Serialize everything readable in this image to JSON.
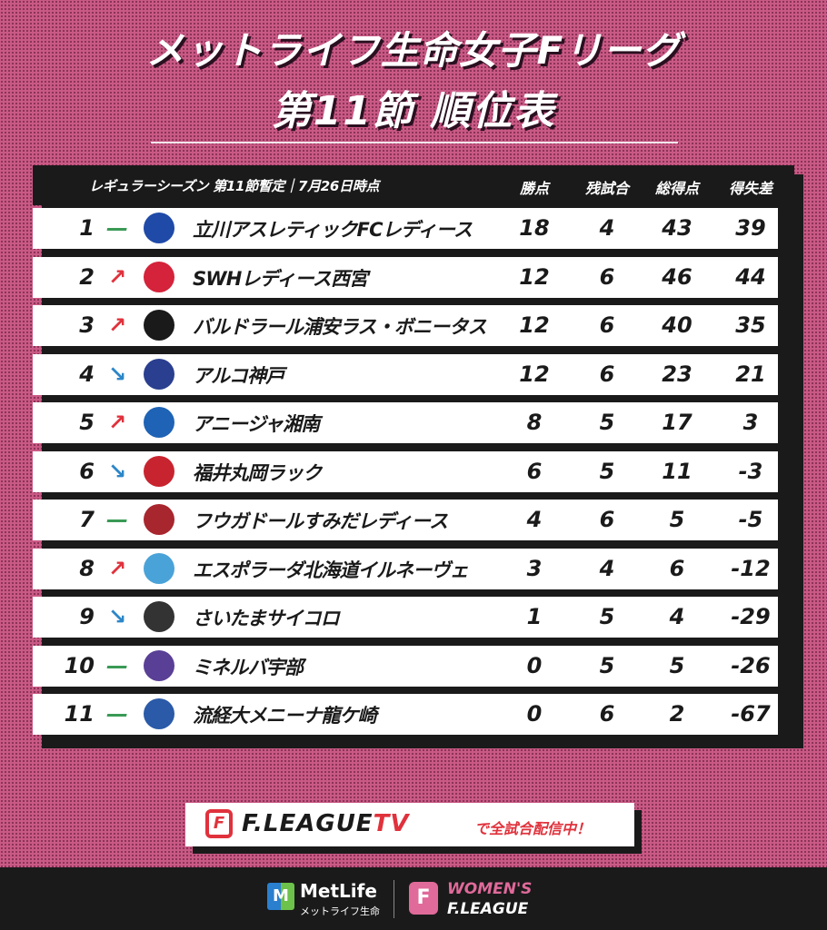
{
  "title_line1": "メットライフ生命女子Fリーグ",
  "title_line2": "第11節 順位表",
  "table": {
    "caption": "レギュラーシーズン 第11節暫定｜7月26日時点",
    "columns": [
      "勝点",
      "残試合",
      "総得点",
      "得失差"
    ],
    "rows": [
      {
        "rank": "1",
        "move": "—",
        "dir": "same",
        "team": "立川アスレティックFCレディース",
        "pts": "18",
        "rem": "4",
        "gf": "43",
        "gd": "39",
        "logo_icon": "tachikawa-crest-icon",
        "logo_color": "#1f4aa8"
      },
      {
        "rank": "2",
        "move": "↗",
        "dir": "up",
        "team": "SWHレディース西宮",
        "pts": "12",
        "rem": "6",
        "gf": "46",
        "gd": "44",
        "logo_icon": "swh-crest-icon",
        "logo_color": "#d4233a"
      },
      {
        "rank": "3",
        "move": "↗",
        "dir": "up",
        "team": "バルドラール浦安ラス・ボニータス",
        "pts": "12",
        "rem": "6",
        "gf": "40",
        "gd": "35",
        "logo_icon": "bardral-crest-icon",
        "logo_color": "#1a1a1a"
      },
      {
        "rank": "4",
        "move": "↘",
        "dir": "down",
        "team": "アルコ神戸",
        "pts": "12",
        "rem": "6",
        "gf": "23",
        "gd": "21",
        "logo_icon": "arco-crest-icon",
        "logo_color": "#2a3f8f"
      },
      {
        "rank": "5",
        "move": "↗",
        "dir": "up",
        "team": "アニージャ湘南",
        "pts": "8",
        "rem": "5",
        "gf": "17",
        "gd": "3",
        "logo_icon": "anilla-crest-icon",
        "logo_color": "#1e63b5"
      },
      {
        "rank": "6",
        "move": "↘",
        "dir": "down",
        "team": "福井丸岡ラック",
        "pts": "6",
        "rem": "5",
        "gf": "11",
        "gd": "-3",
        "logo_icon": "ruck-crest-icon",
        "logo_color": "#c8242f"
      },
      {
        "rank": "7",
        "move": "—",
        "dir": "same",
        "team": "フウガドールすみだレディース",
        "pts": "4",
        "rem": "6",
        "gf": "5",
        "gd": "-5",
        "logo_icon": "fugador-crest-icon",
        "logo_color": "#a8262e"
      },
      {
        "rank": "8",
        "move": "↗",
        "dir": "up",
        "team": "エスポラーダ北海道イルネーヴェ",
        "pts": "3",
        "rem": "4",
        "gf": "6",
        "gd": "-12",
        "logo_icon": "esporada-crest-icon",
        "logo_color": "#4aa3d8"
      },
      {
        "rank": "9",
        "move": "↘",
        "dir": "down",
        "team": "さいたまサイコロ",
        "pts": "1",
        "rem": "5",
        "gf": "4",
        "gd": "-29",
        "logo_icon": "saicolo-crest-icon",
        "logo_color": "#333333"
      },
      {
        "rank": "10",
        "move": "—",
        "dir": "same",
        "team": "ミネルバ宇部",
        "pts": "0",
        "rem": "5",
        "gf": "5",
        "gd": "-26",
        "logo_icon": "minerva-crest-icon",
        "logo_color": "#5a3f96"
      },
      {
        "rank": "11",
        "move": "—",
        "dir": "same",
        "team": "流経大メニーナ龍ケ崎",
        "pts": "0",
        "rem": "6",
        "gf": "2",
        "gd": "-67",
        "logo_icon": "rku-crest-icon",
        "logo_color": "#2a5aa8"
      }
    ]
  },
  "banner": {
    "logo_glyph": "F",
    "brand_main": "F.LEAGUE",
    "brand_tv": "TV",
    "tagline": "で全試合配信中！"
  },
  "footer": {
    "metlife_glyph": "M",
    "metlife_name": "MetLife",
    "metlife_sub": "メットライフ生命",
    "wfl_glyph": "F",
    "wfl_line1": "WOMEN'S",
    "wfl_line2": "F.LEAGUE"
  },
  "colors": {
    "background": "#c95985",
    "dark": "#1a1a1a",
    "accent_red": "#e0323c",
    "arrow_same": "#3a9a55",
    "arrow_up": "#e0323c",
    "arrow_down": "#2c86c8"
  }
}
